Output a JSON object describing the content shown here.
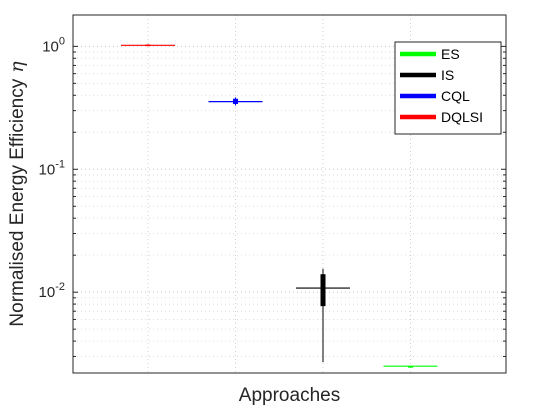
{
  "chart_data": {
    "type": "box",
    "xlabel": "Approaches",
    "ylabel": "Normalised Energy Efficiency",
    "ylabel_symbol": "η",
    "yscale": "log",
    "ylim": [
      0.0022,
      1.8
    ],
    "grid": true,
    "yticks": [
      {
        "value": 1,
        "base": "10",
        "exp": "0"
      },
      {
        "value": 0.1,
        "base": "10",
        "exp": "-1"
      },
      {
        "value": 0.01,
        "base": "10",
        "exp": "-2"
      }
    ],
    "legend_position": "top-right",
    "legend": [
      {
        "name": "ES",
        "color": "#00ff00"
      },
      {
        "name": "IS",
        "color": "#000000"
      },
      {
        "name": "CQL",
        "color": "#0000ff"
      },
      {
        "name": "DQLSI",
        "color": "#ff0000"
      }
    ],
    "boxes": [
      {
        "name": "DQLSI",
        "color": "#ff0000",
        "position": 1,
        "min": 1.0,
        "q1": 1.01,
        "median": 1.02,
        "q3": 1.035,
        "max": 1.04
      },
      {
        "name": "CQL",
        "color": "#0000ff",
        "position": 2,
        "min": 0.33,
        "q1": 0.34,
        "median": 0.355,
        "q3": 0.375,
        "max": 0.385
      },
      {
        "name": "IS",
        "color": "#000000",
        "position": 3,
        "min": 0.0027,
        "q1": 0.0077,
        "median": 0.0108,
        "q3": 0.014,
        "max": 0.0155
      },
      {
        "name": "ES",
        "color": "#00ff00",
        "position": 4,
        "min": 0.0025,
        "q1": 0.0025,
        "median": 0.0025,
        "q3": 0.0025,
        "max": 0.0025
      }
    ]
  }
}
